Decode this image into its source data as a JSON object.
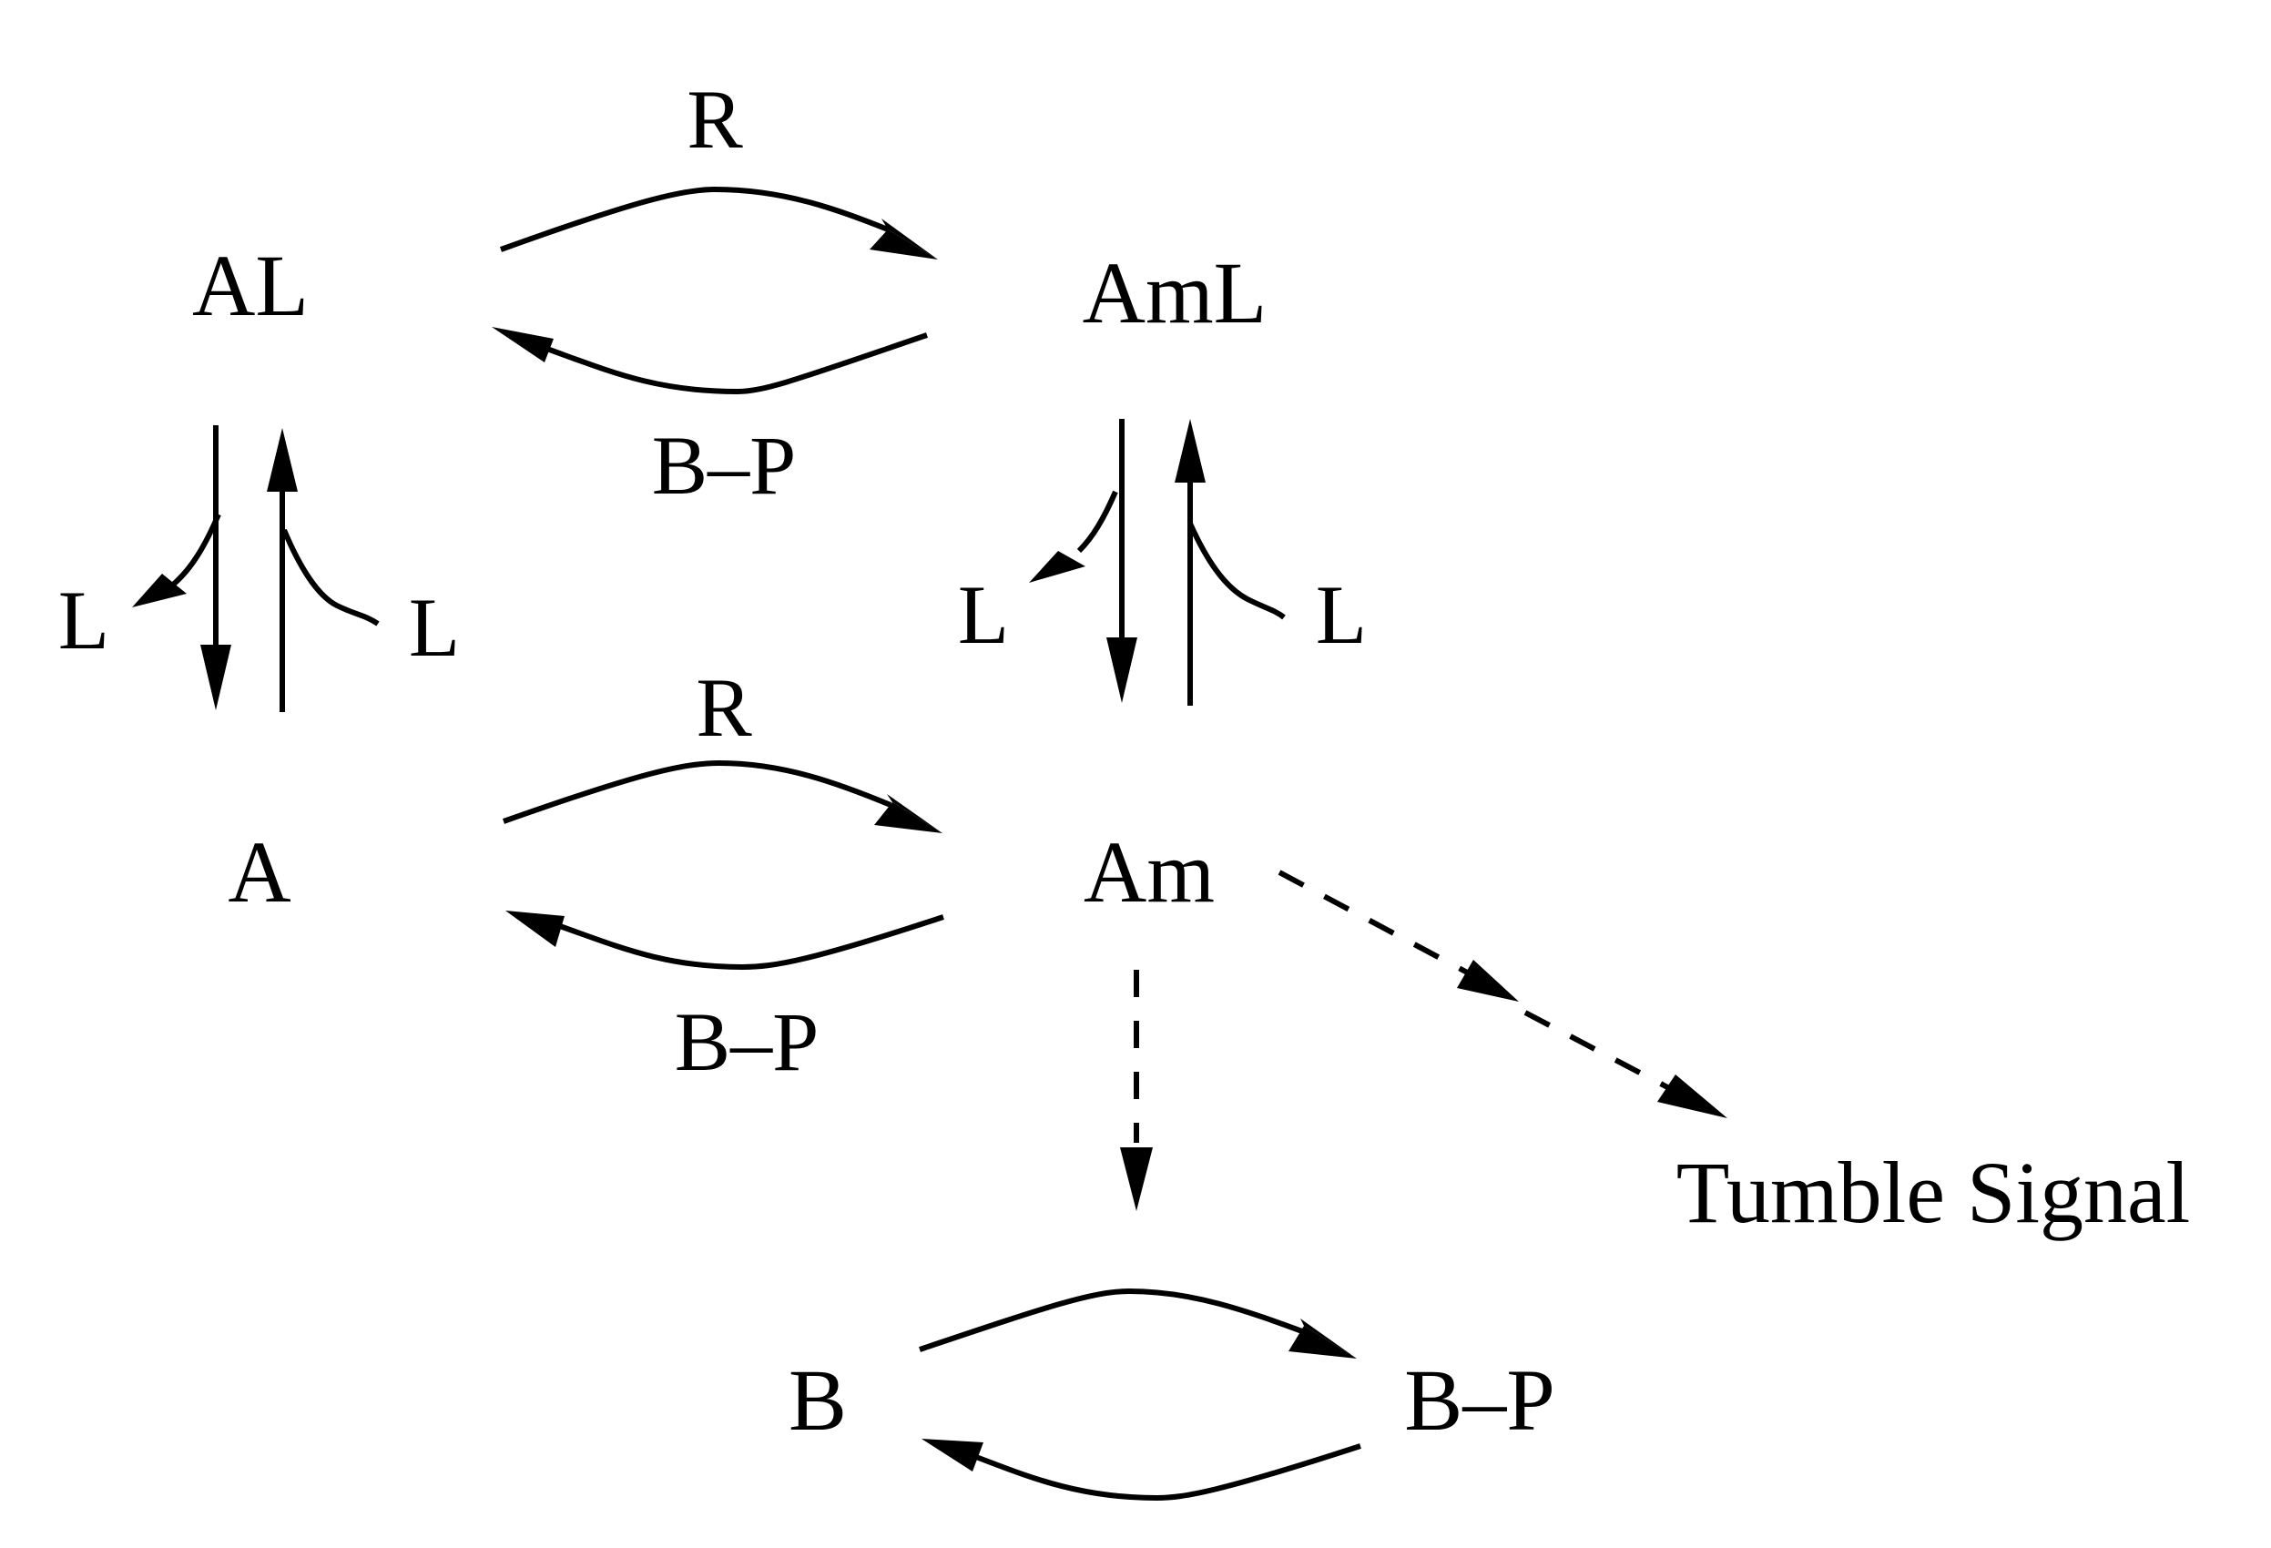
{
  "nodes": {
    "AL": "AL",
    "AmL": "AmL",
    "A": "A",
    "Am": "Am",
    "B": "B",
    "BP": "B–P",
    "tumble": "Tumble Signal"
  },
  "edge_labels": {
    "top_forward": "R",
    "top_backward": "B–P",
    "mid_forward": "R",
    "mid_backward": "B–P",
    "left_down_ligand": "L",
    "left_up_ligand": "L",
    "right_down_ligand": "L",
    "right_up_ligand": "L"
  }
}
